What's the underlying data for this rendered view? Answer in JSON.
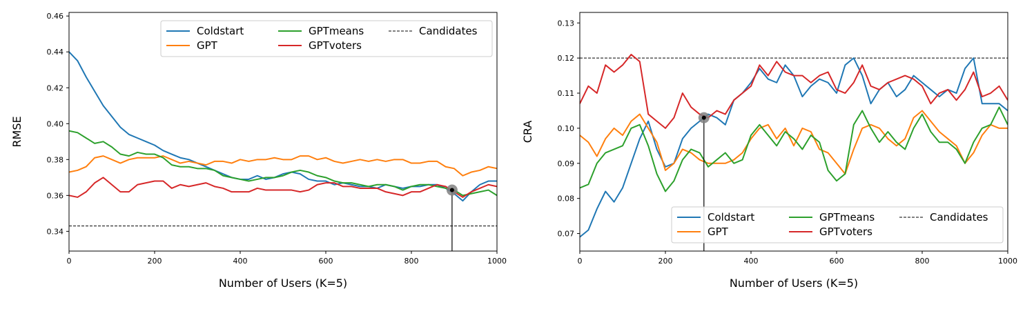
{
  "chart_data": [
    {
      "type": "line",
      "xlabel": "Number of Users (K=5)",
      "ylabel": "RMSE",
      "xlim": [
        0,
        1000
      ],
      "ylim": [
        0.329,
        0.462
      ],
      "xticks": [
        0,
        200,
        400,
        600,
        800,
        1000
      ],
      "yticks": [
        0.34,
        0.36,
        0.38,
        0.4,
        0.42,
        0.44,
        0.46
      ],
      "yprecision": 2,
      "legend_placement": "top-right",
      "legend_columns": 3,
      "series": [
        {
          "name": "Coldstart",
          "color": "#1f77b4",
          "x": [
            0,
            20,
            40,
            60,
            80,
            100,
            120,
            140,
            160,
            180,
            200,
            220,
            240,
            260,
            280,
            300,
            320,
            340,
            360,
            380,
            400,
            420,
            440,
            460,
            480,
            500,
            520,
            540,
            560,
            580,
            600,
            620,
            640,
            660,
            680,
            700,
            720,
            740,
            760,
            780,
            800,
            820,
            840,
            860,
            880,
            900,
            920,
            940,
            960,
            980,
            1000
          ],
          "y": [
            0.44,
            0.435,
            0.426,
            0.418,
            0.41,
            0.404,
            0.398,
            0.394,
            0.392,
            0.39,
            0.388,
            0.385,
            0.383,
            0.381,
            0.38,
            0.378,
            0.376,
            0.374,
            0.372,
            0.37,
            0.369,
            0.369,
            0.371,
            0.369,
            0.37,
            0.372,
            0.373,
            0.372,
            0.369,
            0.368,
            0.368,
            0.366,
            0.367,
            0.366,
            0.365,
            0.365,
            0.364,
            0.366,
            0.365,
            0.364,
            0.365,
            0.365,
            0.366,
            0.366,
            0.364,
            0.361,
            0.357,
            0.362,
            0.366,
            0.368,
            0.368
          ]
        },
        {
          "name": "GPT",
          "color": "#ff7f0e",
          "x": [
            0,
            20,
            40,
            60,
            80,
            100,
            120,
            140,
            160,
            180,
            200,
            220,
            240,
            260,
            280,
            300,
            320,
            340,
            360,
            380,
            400,
            420,
            440,
            460,
            480,
            500,
            520,
            540,
            560,
            580,
            600,
            620,
            640,
            660,
            680,
            700,
            720,
            740,
            760,
            780,
            800,
            820,
            840,
            860,
            880,
            900,
            920,
            940,
            960,
            980,
            1000
          ],
          "y": [
            0.373,
            0.374,
            0.376,
            0.381,
            0.382,
            0.38,
            0.378,
            0.38,
            0.381,
            0.381,
            0.381,
            0.382,
            0.38,
            0.378,
            0.379,
            0.378,
            0.377,
            0.379,
            0.379,
            0.378,
            0.38,
            0.379,
            0.38,
            0.38,
            0.381,
            0.38,
            0.38,
            0.382,
            0.382,
            0.38,
            0.381,
            0.379,
            0.378,
            0.379,
            0.38,
            0.379,
            0.38,
            0.379,
            0.38,
            0.38,
            0.378,
            0.378,
            0.379,
            0.379,
            0.376,
            0.375,
            0.371,
            0.373,
            0.374,
            0.376,
            0.375
          ]
        },
        {
          "name": "GPTmeans",
          "color": "#2ca02c",
          "x": [
            0,
            20,
            40,
            60,
            80,
            100,
            120,
            140,
            160,
            180,
            200,
            220,
            240,
            260,
            280,
            300,
            320,
            340,
            360,
            380,
            400,
            420,
            440,
            460,
            480,
            500,
            520,
            540,
            560,
            580,
            600,
            620,
            640,
            660,
            680,
            700,
            720,
            740,
            760,
            780,
            800,
            820,
            840,
            860,
            880,
            900,
            920,
            940,
            960,
            980,
            1000
          ],
          "y": [
            0.396,
            0.395,
            0.392,
            0.389,
            0.39,
            0.387,
            0.383,
            0.382,
            0.384,
            0.383,
            0.383,
            0.381,
            0.377,
            0.376,
            0.376,
            0.375,
            0.375,
            0.374,
            0.371,
            0.37,
            0.369,
            0.368,
            0.369,
            0.37,
            0.37,
            0.371,
            0.373,
            0.374,
            0.373,
            0.371,
            0.37,
            0.368,
            0.367,
            0.367,
            0.366,
            0.365,
            0.366,
            0.366,
            0.365,
            0.363,
            0.365,
            0.366,
            0.366,
            0.365,
            0.364,
            0.363,
            0.36,
            0.361,
            0.362,
            0.363,
            0.36
          ]
        },
        {
          "name": "GPTvoters",
          "color": "#d62728",
          "x": [
            0,
            20,
            40,
            60,
            80,
            100,
            120,
            140,
            160,
            180,
            200,
            220,
            240,
            260,
            280,
            300,
            320,
            340,
            360,
            380,
            400,
            420,
            440,
            460,
            480,
            500,
            520,
            540,
            560,
            580,
            600,
            620,
            640,
            660,
            680,
            700,
            720,
            740,
            760,
            780,
            800,
            820,
            840,
            860,
            880,
            900,
            920,
            940,
            960,
            980,
            1000
          ],
          "y": [
            0.36,
            0.359,
            0.362,
            0.367,
            0.37,
            0.366,
            0.362,
            0.362,
            0.366,
            0.367,
            0.368,
            0.368,
            0.364,
            0.366,
            0.365,
            0.366,
            0.367,
            0.365,
            0.364,
            0.362,
            0.362,
            0.362,
            0.364,
            0.363,
            0.363,
            0.363,
            0.363,
            0.362,
            0.363,
            0.366,
            0.367,
            0.367,
            0.365,
            0.365,
            0.364,
            0.364,
            0.364,
            0.362,
            0.361,
            0.36,
            0.362,
            0.362,
            0.364,
            0.366,
            0.365,
            0.362,
            0.359,
            0.362,
            0.364,
            0.366,
            0.365
          ]
        }
      ],
      "reference_line": {
        "name": "Candidates",
        "y": 0.343,
        "color": "#000000"
      },
      "marker": {
        "x": 895,
        "y": 0.363
      }
    },
    {
      "type": "line",
      "xlabel": "Number of Users (K=5)",
      "ylabel": "CRA",
      "xlim": [
        0,
        1000
      ],
      "ylim": [
        0.065,
        0.133
      ],
      "xticks": [
        0,
        200,
        400,
        600,
        800,
        1000
      ],
      "yticks": [
        0.07,
        0.08,
        0.09,
        0.1,
        0.11,
        0.12,
        0.13
      ],
      "yprecision": 2,
      "legend_placement": "bottom-right",
      "legend_columns": 3,
      "series": [
        {
          "name": "Coldstart",
          "color": "#1f77b4",
          "x": [
            0,
            20,
            40,
            60,
            80,
            100,
            120,
            140,
            160,
            180,
            200,
            220,
            240,
            260,
            280,
            300,
            320,
            340,
            360,
            380,
            400,
            420,
            440,
            460,
            480,
            500,
            520,
            540,
            560,
            580,
            600,
            620,
            640,
            660,
            680,
            700,
            720,
            740,
            760,
            780,
            800,
            820,
            840,
            860,
            880,
            900,
            920,
            940,
            960,
            980,
            1000
          ],
          "y": [
            0.069,
            0.071,
            0.077,
            0.082,
            0.079,
            0.083,
            0.09,
            0.097,
            0.102,
            0.094,
            0.089,
            0.09,
            0.097,
            0.1,
            0.102,
            0.104,
            0.103,
            0.101,
            0.108,
            0.11,
            0.113,
            0.117,
            0.114,
            0.113,
            0.118,
            0.115,
            0.109,
            0.112,
            0.114,
            0.113,
            0.11,
            0.118,
            0.12,
            0.115,
            0.107,
            0.111,
            0.113,
            0.109,
            0.111,
            0.115,
            0.113,
            0.111,
            0.109,
            0.111,
            0.11,
            0.117,
            0.12,
            0.107,
            0.107,
            0.107,
            0.105
          ]
        },
        {
          "name": "GPT",
          "color": "#ff7f0e",
          "x": [
            0,
            20,
            40,
            60,
            80,
            100,
            120,
            140,
            160,
            180,
            200,
            220,
            240,
            260,
            280,
            300,
            320,
            340,
            360,
            380,
            400,
            420,
            440,
            460,
            480,
            500,
            520,
            540,
            560,
            580,
            600,
            620,
            640,
            660,
            680,
            700,
            720,
            740,
            760,
            780,
            800,
            820,
            840,
            860,
            880,
            900,
            920,
            940,
            960,
            980,
            1000
          ],
          "y": [
            0.098,
            0.096,
            0.092,
            0.097,
            0.1,
            0.098,
            0.102,
            0.104,
            0.1,
            0.096,
            0.088,
            0.09,
            0.094,
            0.093,
            0.091,
            0.09,
            0.09,
            0.09,
            0.091,
            0.093,
            0.097,
            0.1,
            0.101,
            0.097,
            0.1,
            0.095,
            0.1,
            0.099,
            0.094,
            0.093,
            0.09,
            0.087,
            0.094,
            0.1,
            0.101,
            0.1,
            0.097,
            0.095,
            0.097,
            0.103,
            0.105,
            0.102,
            0.099,
            0.097,
            0.095,
            0.09,
            0.093,
            0.098,
            0.101,
            0.1,
            0.1
          ]
        },
        {
          "name": "GPTmeans",
          "color": "#2ca02c",
          "x": [
            0,
            20,
            40,
            60,
            80,
            100,
            120,
            140,
            160,
            180,
            200,
            220,
            240,
            260,
            280,
            300,
            320,
            340,
            360,
            380,
            400,
            420,
            440,
            460,
            480,
            500,
            520,
            540,
            560,
            580,
            600,
            620,
            640,
            660,
            680,
            700,
            720,
            740,
            760,
            780,
            800,
            820,
            840,
            860,
            880,
            900,
            920,
            940,
            960,
            980,
            1000
          ],
          "y": [
            0.083,
            0.084,
            0.09,
            0.093,
            0.094,
            0.095,
            0.1,
            0.101,
            0.095,
            0.087,
            0.082,
            0.085,
            0.091,
            0.094,
            0.093,
            0.089,
            0.091,
            0.093,
            0.09,
            0.091,
            0.098,
            0.101,
            0.098,
            0.095,
            0.099,
            0.097,
            0.094,
            0.098,
            0.096,
            0.088,
            0.085,
            0.087,
            0.101,
            0.105,
            0.1,
            0.096,
            0.099,
            0.096,
            0.094,
            0.1,
            0.104,
            0.099,
            0.096,
            0.096,
            0.094,
            0.09,
            0.096,
            0.1,
            0.101,
            0.106,
            0.101
          ]
        },
        {
          "name": "GPTvoters",
          "color": "#d62728",
          "x": [
            0,
            20,
            40,
            60,
            80,
            100,
            120,
            140,
            160,
            180,
            200,
            220,
            240,
            260,
            280,
            300,
            320,
            340,
            360,
            380,
            400,
            420,
            440,
            460,
            480,
            500,
            520,
            540,
            560,
            580,
            600,
            620,
            640,
            660,
            680,
            700,
            720,
            740,
            760,
            780,
            800,
            820,
            840,
            860,
            880,
            900,
            920,
            940,
            960,
            980,
            1000
          ],
          "y": [
            0.107,
            0.112,
            0.11,
            0.118,
            0.116,
            0.118,
            0.121,
            0.119,
            0.104,
            0.102,
            0.1,
            0.103,
            0.11,
            0.106,
            0.104,
            0.103,
            0.105,
            0.104,
            0.108,
            0.11,
            0.112,
            0.118,
            0.115,
            0.119,
            0.116,
            0.115,
            0.115,
            0.113,
            0.115,
            0.116,
            0.111,
            0.11,
            0.113,
            0.118,
            0.112,
            0.111,
            0.113,
            0.114,
            0.115,
            0.114,
            0.112,
            0.107,
            0.11,
            0.111,
            0.108,
            0.111,
            0.116,
            0.109,
            0.11,
            0.112,
            0.108
          ]
        }
      ],
      "reference_line": {
        "name": "Candidates",
        "y": 0.12,
        "color": "#000000"
      },
      "marker": {
        "x": 290,
        "y": 0.103
      }
    }
  ]
}
